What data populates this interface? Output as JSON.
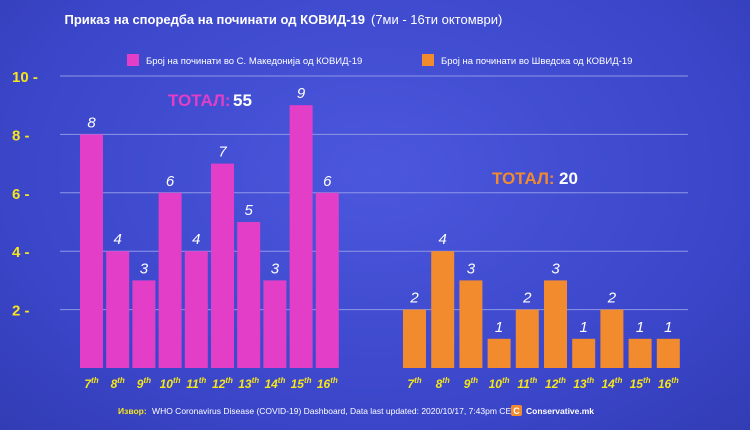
{
  "chart_data": {
    "type": "bar",
    "title": "Приказ на споредба на починати од КОВИД-19",
    "subtitle": "(7ми - 16ти октомври)",
    "ylim": [
      0,
      10
    ],
    "yticks": [
      {
        "value": 2,
        "label": "2 -"
      },
      {
        "value": 4,
        "label": "4 -"
      },
      {
        "value": 6,
        "label": "6 -"
      },
      {
        "value": 8,
        "label": "8 -"
      },
      {
        "value": 10,
        "label": "10 -"
      }
    ],
    "grid": true,
    "categories": [
      {
        "num": "7",
        "suf": "th"
      },
      {
        "num": "8",
        "suf": "th"
      },
      {
        "num": "9",
        "suf": "th"
      },
      {
        "num": "10",
        "suf": "th"
      },
      {
        "num": "11",
        "suf": "th"
      },
      {
        "num": "12",
        "suf": "th"
      },
      {
        "num": "13",
        "suf": "th"
      },
      {
        "num": "14",
        "suf": "th"
      },
      {
        "num": "15",
        "suf": "th"
      },
      {
        "num": "16",
        "suf": "th"
      }
    ],
    "series": [
      {
        "name": "Број на починати во С. Македонија од КОВИД-19",
        "color": "#e33ec8",
        "values": [
          8,
          4,
          3,
          6,
          4,
          7,
          5,
          3,
          9,
          6
        ],
        "total_label": "ТОТАЛ:",
        "total_value": "55",
        "total_color": "#e33ec8"
      },
      {
        "name": "Број на починати во Шведска од КОВИД-19",
        "color": "#f28a2e",
        "values": [
          2,
          4,
          3,
          1,
          2,
          3,
          1,
          2,
          1,
          1
        ],
        "total_label": "ТОТАЛ:",
        "total_value": "20",
        "total_color": "#f28a2e"
      }
    ],
    "source": {
      "label": "Извор:",
      "text": "WHO Coronavirus Disease (COVID-19) Dashboard, Data last updated: 2020/10/17, 7:43pm CEST",
      "brand": "Conservative.mk"
    }
  },
  "colors": {
    "axis_tick": "#f5e61c",
    "category_label": "#f5e61c",
    "grid": "#8f97e6",
    "value_label": "#ffffff",
    "brand_badge": "#f28a2e"
  }
}
